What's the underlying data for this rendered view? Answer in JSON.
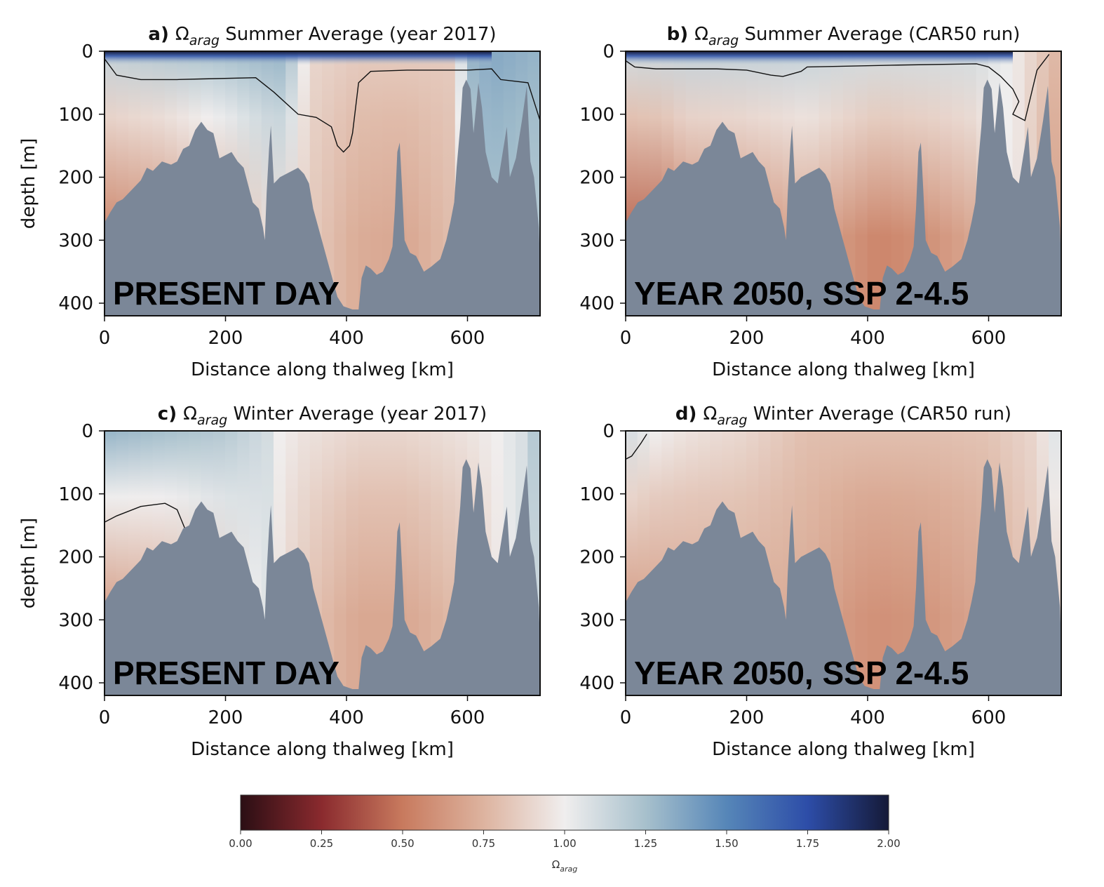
{
  "chart_data": [
    {
      "type": "heatmap",
      "panel_letter": "a)",
      "title_parts": [
        "Ω",
        "arag",
        " Summer Average (year 2017)"
      ],
      "xlabel": "Distance along thalweg [km]",
      "ylabel": "depth [m]",
      "xlim": [
        0,
        720
      ],
      "ylim": [
        420,
        0
      ],
      "xticks": [
        0,
        200,
        400,
        600
      ],
      "yticks": [
        0,
        100,
        200,
        300,
        400
      ],
      "overlay_label": "PRESENT DAY",
      "omega_surface": [
        [
          0,
          1.15
        ],
        [
          100,
          1.2
        ],
        [
          200,
          1.25
        ],
        [
          300,
          1.3
        ],
        [
          340,
          0.9
        ],
        [
          420,
          0.85
        ],
        [
          500,
          0.85
        ],
        [
          580,
          0.85
        ],
        [
          600,
          1.3
        ],
        [
          650,
          1.35
        ],
        [
          720,
          1.3
        ]
      ],
      "omega_deep": [
        [
          0,
          0.55
        ],
        [
          100,
          0.6
        ],
        [
          200,
          0.75
        ],
        [
          280,
          0.95
        ],
        [
          340,
          0.85
        ],
        [
          420,
          0.72
        ],
        [
          500,
          0.7
        ],
        [
          580,
          0.8
        ],
        [
          620,
          1.25
        ],
        [
          720,
          1.2
        ]
      ],
      "contour_omega_1": [
        [
          0,
          12
        ],
        [
          20,
          38
        ],
        [
          60,
          45
        ],
        [
          120,
          45
        ],
        [
          160,
          44
        ],
        [
          250,
          42
        ],
        [
          280,
          65
        ],
        [
          320,
          100
        ],
        [
          350,
          105
        ],
        [
          375,
          120
        ],
        [
          385,
          150
        ],
        [
          395,
          160
        ],
        [
          405,
          150
        ],
        [
          410,
          130
        ],
        [
          420,
          50
        ],
        [
          440,
          32
        ],
        [
          500,
          30
        ],
        [
          560,
          30
        ],
        [
          600,
          30
        ],
        [
          640,
          28
        ],
        [
          655,
          45
        ],
        [
          700,
          50
        ],
        [
          720,
          110
        ]
      ]
    },
    {
      "type": "heatmap",
      "panel_letter": "b)",
      "title_parts": [
        "Ω",
        "arag",
        " Summer Average (CAR50 run)"
      ],
      "xlabel": "Distance along thalweg [km]",
      "ylabel": "",
      "xlim": [
        0,
        720
      ],
      "ylim": [
        420,
        0
      ],
      "xticks": [
        0,
        200,
        400,
        600
      ],
      "yticks": [
        0,
        100,
        200,
        300,
        400
      ],
      "overlay_label": "YEAR 2050, SSP 2-4.5",
      "omega_surface": [
        [
          0,
          1.1
        ],
        [
          100,
          1.15
        ],
        [
          200,
          1.15
        ],
        [
          300,
          1.15
        ],
        [
          400,
          1.1
        ],
        [
          580,
          1.1
        ],
        [
          610,
          1.05
        ],
        [
          640,
          1.0
        ],
        [
          700,
          0.8
        ],
        [
          720,
          0.75
        ]
      ],
      "omega_deep": [
        [
          0,
          0.45
        ],
        [
          60,
          0.45
        ],
        [
          100,
          0.55
        ],
        [
          200,
          0.6
        ],
        [
          300,
          0.7
        ],
        [
          380,
          0.6
        ],
        [
          420,
          0.55
        ],
        [
          500,
          0.6
        ],
        [
          580,
          0.7
        ],
        [
          620,
          1.0
        ],
        [
          650,
          0.95
        ],
        [
          720,
          0.65
        ]
      ],
      "contour_omega_1": [
        [
          0,
          15
        ],
        [
          15,
          25
        ],
        [
          50,
          28
        ],
        [
          150,
          28
        ],
        [
          200,
          30
        ],
        [
          240,
          38
        ],
        [
          260,
          40
        ],
        [
          290,
          32
        ],
        [
          300,
          25
        ],
        [
          350,
          24
        ],
        [
          450,
          22
        ],
        [
          580,
          20
        ],
        [
          600,
          25
        ],
        [
          620,
          40
        ],
        [
          640,
          60
        ],
        [
          650,
          80
        ],
        [
          640,
          100
        ],
        [
          660,
          110
        ],
        [
          680,
          30
        ],
        [
          700,
          5
        ]
      ]
    },
    {
      "type": "heatmap",
      "panel_letter": "c)",
      "title_parts": [
        "Ω",
        "arag",
        " Winter Average (year 2017)"
      ],
      "xlabel": "Distance along thalweg [km]",
      "ylabel": "depth [m]",
      "xlim": [
        0,
        720
      ],
      "ylim": [
        420,
        0
      ],
      "xticks": [
        0,
        200,
        400,
        600
      ],
      "yticks": [
        0,
        100,
        200,
        300,
        400
      ],
      "overlay_label": "PRESENT DAY",
      "omega_surface": [
        [
          0,
          1.3
        ],
        [
          100,
          1.25
        ],
        [
          200,
          1.2
        ],
        [
          270,
          1.1
        ],
        [
          290,
          1.0
        ],
        [
          330,
          0.95
        ],
        [
          420,
          0.9
        ],
        [
          500,
          0.9
        ],
        [
          600,
          0.95
        ],
        [
          650,
          1.0
        ],
        [
          700,
          1.1
        ],
        [
          720,
          1.3
        ]
      ],
      "omega_deep": [
        [
          0,
          0.65
        ],
        [
          100,
          0.7
        ],
        [
          200,
          0.9
        ],
        [
          270,
          1.05
        ],
        [
          300,
          0.9
        ],
        [
          350,
          0.8
        ],
        [
          420,
          0.7
        ],
        [
          500,
          0.7
        ],
        [
          600,
          0.8
        ],
        [
          660,
          1.0
        ],
        [
          720,
          1.15
        ]
      ],
      "contour_omega_1": [
        [
          0,
          145
        ],
        [
          20,
          135
        ],
        [
          60,
          120
        ],
        [
          100,
          115
        ],
        [
          120,
          125
        ],
        [
          135,
          160
        ],
        [
          140,
          175
        ]
      ]
    },
    {
      "type": "heatmap",
      "panel_letter": "d)",
      "title_parts": [
        "Ω",
        "arag",
        " Winter Average (CAR50 run)"
      ],
      "xlabel": "Distance along thalweg [km]",
      "ylabel": "",
      "xlim": [
        0,
        720
      ],
      "ylim": [
        420,
        0
      ],
      "xticks": [
        0,
        200,
        400,
        600
      ],
      "yticks": [
        0,
        100,
        200,
        300,
        400
      ],
      "overlay_label": "YEAR 2050, SSP 2-4.5",
      "omega_surface": [
        [
          0,
          1.1
        ],
        [
          50,
          1.0
        ],
        [
          100,
          0.95
        ],
        [
          200,
          0.9
        ],
        [
          300,
          0.8
        ],
        [
          400,
          0.8
        ],
        [
          500,
          0.8
        ],
        [
          600,
          0.82
        ],
        [
          680,
          0.9
        ],
        [
          720,
          1.1
        ]
      ],
      "omega_deep": [
        [
          0,
          0.65
        ],
        [
          100,
          0.7
        ],
        [
          200,
          0.72
        ],
        [
          300,
          0.72
        ],
        [
          380,
          0.62
        ],
        [
          420,
          0.6
        ],
        [
          500,
          0.62
        ],
        [
          600,
          0.7
        ],
        [
          680,
          0.85
        ],
        [
          720,
          0.9
        ]
      ],
      "contour_omega_1": [
        [
          0,
          45
        ],
        [
          10,
          40
        ],
        [
          25,
          20
        ],
        [
          35,
          5
        ]
      ]
    }
  ],
  "bathymetry_km_m": [
    [
      0,
      272
    ],
    [
      10,
      255
    ],
    [
      20,
      240
    ],
    [
      30,
      235
    ],
    [
      40,
      225
    ],
    [
      50,
      215
    ],
    [
      60,
      205
    ],
    [
      70,
      185
    ],
    [
      80,
      190
    ],
    [
      95,
      175
    ],
    [
      110,
      180
    ],
    [
      120,
      175
    ],
    [
      130,
      155
    ],
    [
      140,
      150
    ],
    [
      150,
      125
    ],
    [
      160,
      112
    ],
    [
      170,
      125
    ],
    [
      180,
      130
    ],
    [
      190,
      170
    ],
    [
      200,
      165
    ],
    [
      210,
      160
    ],
    [
      220,
      175
    ],
    [
      230,
      185
    ],
    [
      245,
      240
    ],
    [
      255,
      250
    ],
    [
      262,
      280
    ],
    [
      265,
      300
    ],
    [
      268,
      225
    ],
    [
      272,
      155
    ],
    [
      275,
      118
    ],
    [
      280,
      210
    ],
    [
      290,
      200
    ],
    [
      300,
      195
    ],
    [
      320,
      185
    ],
    [
      330,
      195
    ],
    [
      338,
      210
    ],
    [
      345,
      250
    ],
    [
      355,
      285
    ],
    [
      365,
      320
    ],
    [
      375,
      355
    ],
    [
      385,
      390
    ],
    [
      395,
      405
    ],
    [
      410,
      410
    ],
    [
      420,
      410
    ],
    [
      425,
      360
    ],
    [
      432,
      340
    ],
    [
      440,
      345
    ],
    [
      450,
      355
    ],
    [
      460,
      350
    ],
    [
      470,
      330
    ],
    [
      476,
      310
    ],
    [
      480,
      250
    ],
    [
      484,
      160
    ],
    [
      488,
      145
    ],
    [
      492,
      220
    ],
    [
      496,
      300
    ],
    [
      505,
      320
    ],
    [
      515,
      325
    ],
    [
      528,
      350
    ],
    [
      540,
      342
    ],
    [
      555,
      330
    ],
    [
      565,
      300
    ],
    [
      572,
      270
    ],
    [
      578,
      240
    ],
    [
      582,
      185
    ],
    [
      588,
      120
    ],
    [
      592,
      58
    ],
    [
      598,
      45
    ],
    [
      605,
      60
    ],
    [
      610,
      130
    ],
    [
      618,
      50
    ],
    [
      624,
      90
    ],
    [
      630,
      160
    ],
    [
      640,
      200
    ],
    [
      650,
      210
    ],
    [
      660,
      150
    ],
    [
      665,
      120
    ],
    [
      670,
      200
    ],
    [
      680,
      170
    ],
    [
      690,
      110
    ],
    [
      698,
      55
    ],
    [
      704,
      175
    ],
    [
      710,
      200
    ],
    [
      718,
      280
    ],
    [
      720,
      340
    ]
  ],
  "colorbar": {
    "label_base": "Ω",
    "label_sub": "arag",
    "range": [
      0.0,
      2.0
    ],
    "ticks": [
      "0.00",
      "0.25",
      "0.50",
      "0.75",
      "1.00",
      "1.25",
      "1.50",
      "1.75",
      "2.00"
    ],
    "colormap_stops": [
      [
        0.0,
        "#2b0e14"
      ],
      [
        0.25,
        "#8a2a2e"
      ],
      [
        0.5,
        "#c87a5e"
      ],
      [
        0.75,
        "#ddb39f"
      ],
      [
        1.0,
        "#f0eeee"
      ],
      [
        1.25,
        "#a7c0cc"
      ],
      [
        1.5,
        "#5686b8"
      ],
      [
        1.75,
        "#2d4da8"
      ],
      [
        2.0,
        "#151a38"
      ]
    ]
  },
  "colors": {
    "bathymetry_fill": "#7b8798",
    "contour_line": "#111111",
    "axis": "#111111"
  }
}
